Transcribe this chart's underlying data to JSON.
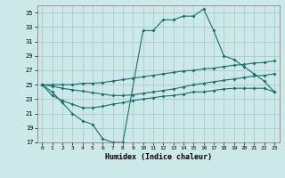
{
  "title": "",
  "xlabel": "Humidex (Indice chaleur)",
  "background_color": "#cce8e8",
  "grid_color": "#aacccc",
  "line_color": "#1a6e6e",
  "xlim": [
    -0.5,
    23.5
  ],
  "ylim": [
    17,
    36
  ],
  "yticks": [
    17,
    19,
    21,
    23,
    25,
    27,
    29,
    31,
    33,
    35
  ],
  "xticks": [
    0,
    1,
    2,
    3,
    4,
    5,
    6,
    7,
    8,
    9,
    10,
    11,
    12,
    13,
    14,
    15,
    16,
    17,
    18,
    19,
    20,
    21,
    22,
    23
  ],
  "series1_x": [
    0,
    1,
    2,
    3,
    4,
    5,
    6,
    7,
    8,
    10,
    11,
    12,
    13,
    14,
    15,
    16,
    17,
    18,
    19,
    20,
    21,
    22,
    23
  ],
  "series1_y": [
    25,
    24,
    22.5,
    21,
    20,
    19.5,
    17.5,
    17,
    17,
    32.5,
    32.5,
    34,
    34,
    34.5,
    34.5,
    35.5,
    32.5,
    29,
    28.5,
    27.5,
    26.5,
    25.5,
    24
  ],
  "series2_x": [
    0,
    1,
    2,
    3,
    4,
    5,
    6,
    7,
    8,
    9,
    10,
    11,
    12,
    13,
    14,
    15,
    16,
    17,
    18,
    19,
    20,
    21,
    22,
    23
  ],
  "series2_y": [
    25,
    25.0,
    25.0,
    25.0,
    25.2,
    25.2,
    25.3,
    25.5,
    25.7,
    25.9,
    26.1,
    26.3,
    26.5,
    26.7,
    26.9,
    27.0,
    27.2,
    27.3,
    27.5,
    27.7,
    27.8,
    28.0,
    28.1,
    28.3
  ],
  "series3_x": [
    0,
    1,
    2,
    3,
    4,
    5,
    6,
    7,
    8,
    9,
    10,
    11,
    12,
    13,
    14,
    15,
    16,
    17,
    18,
    19,
    20,
    21,
    22,
    23
  ],
  "series3_y": [
    25,
    24.8,
    24.5,
    24.3,
    24.1,
    23.9,
    23.7,
    23.5,
    23.5,
    23.6,
    23.8,
    24.0,
    24.2,
    24.4,
    24.7,
    25.0,
    25.2,
    25.4,
    25.6,
    25.8,
    26.0,
    26.2,
    26.3,
    26.5
  ],
  "series4_x": [
    0,
    1,
    2,
    3,
    4,
    5,
    6,
    7,
    8,
    9,
    10,
    11,
    12,
    13,
    14,
    15,
    16,
    17,
    18,
    19,
    20,
    21,
    22,
    23
  ],
  "series4_y": [
    25,
    23.5,
    22.8,
    22.3,
    21.8,
    21.8,
    22.0,
    22.3,
    22.5,
    22.8,
    23.0,
    23.2,
    23.4,
    23.5,
    23.7,
    24.0,
    24.0,
    24.2,
    24.4,
    24.5,
    24.5,
    24.5,
    24.5,
    24.0
  ]
}
